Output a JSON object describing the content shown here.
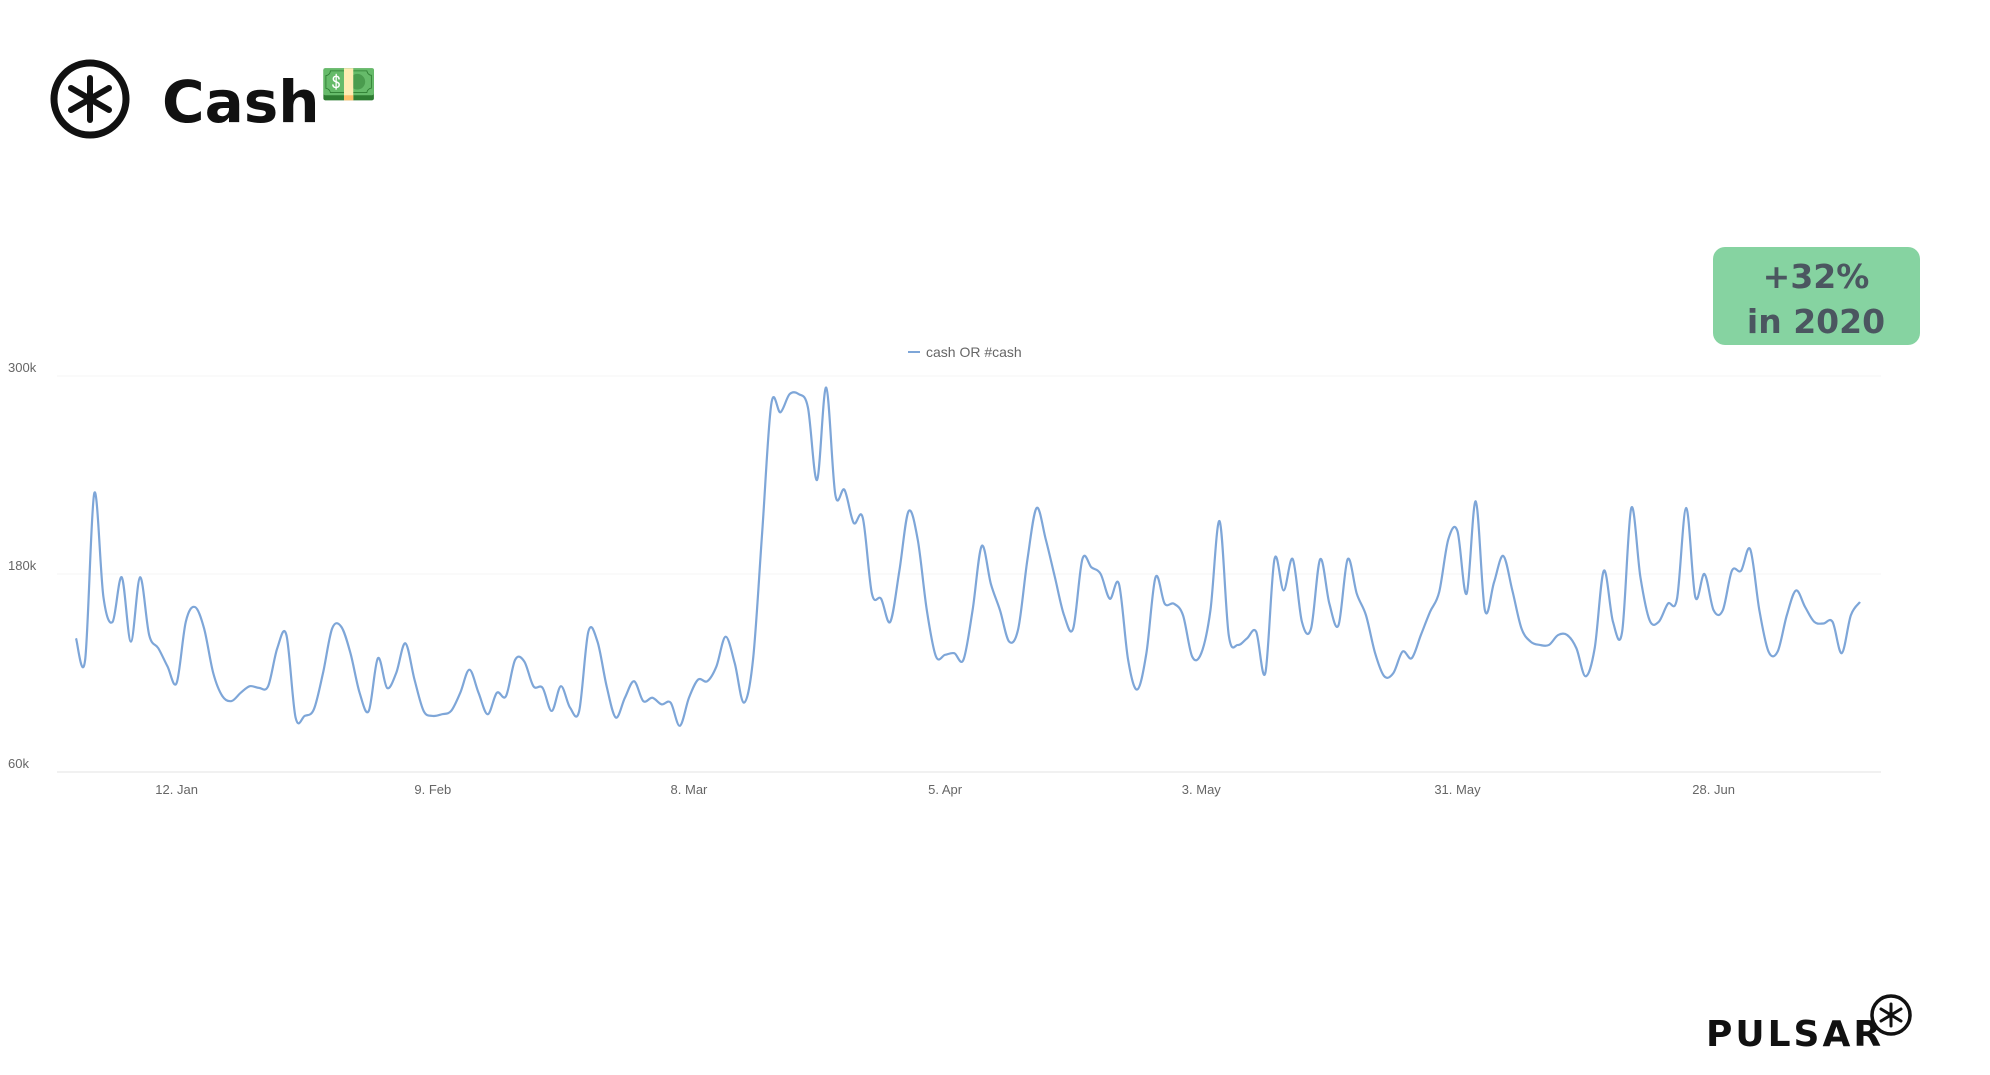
{
  "header": {
    "title": "Cash",
    "icon": "💵"
  },
  "badge": {
    "lines": [
      "+32%",
      "in 2020"
    ]
  },
  "brand": "PULSAR",
  "chart_data": {
    "type": "line",
    "categories": [
      null,
      null,
      null,
      null,
      null,
      null,
      null,
      null,
      null,
      null,
      null,
      "12. Jan",
      null,
      null,
      null,
      null,
      null,
      null,
      null,
      null,
      null,
      null,
      null,
      null,
      null,
      null,
      null,
      null,
      null,
      null,
      null,
      null,
      null,
      null,
      null,
      null,
      null,
      null,
      null,
      "9. Feb",
      null,
      null,
      null,
      null,
      null,
      null,
      null,
      null,
      null,
      null,
      null,
      null,
      null,
      null,
      null,
      null,
      null,
      null,
      null,
      null,
      null,
      null,
      null,
      null,
      null,
      null,
      null,
      "8. Mar",
      null,
      null,
      null,
      null,
      null,
      null,
      null,
      null,
      null,
      null,
      null,
      null,
      null,
      null,
      null,
      null,
      null,
      null,
      null,
      null,
      null,
      null,
      null,
      null,
      null,
      null,
      null,
      "5. Apr",
      null,
      null,
      null,
      null,
      null,
      null,
      null,
      null,
      null,
      null,
      null,
      null,
      null,
      null,
      null,
      null,
      null,
      null,
      null,
      null,
      null,
      null,
      null,
      null,
      null,
      null,
      null,
      "3. May",
      null,
      null,
      null,
      null,
      null,
      null,
      null,
      null,
      null,
      null,
      null,
      null,
      null,
      null,
      null,
      null,
      null,
      null,
      null,
      null,
      null,
      null,
      null,
      null,
      null,
      null,
      null,
      "31. May",
      null,
      null,
      null,
      null,
      null,
      null,
      null,
      null,
      null,
      null,
      null,
      null,
      null,
      null,
      null,
      null,
      null,
      null,
      null,
      null,
      null,
      null,
      null,
      null,
      null,
      null,
      null,
      "28. Jun",
      null,
      null,
      null,
      null,
      null,
      null,
      null,
      null,
      null,
      null,
      null,
      null,
      null,
      null,
      null,
      null
    ],
    "series": [
      {
        "name": "cash OR #cash",
        "color": "#7ea6d8",
        "values": [
          141,
          128,
          229,
          166,
          151,
          178,
          139,
          178,
          143,
          135,
          124,
          114,
          151,
          160,
          147,
          120,
          106,
          103,
          108,
          112,
          111,
          112,
          135,
          143,
          93,
          94,
          98,
          120,
          147,
          148,
          132,
          108,
          97,
          129,
          111,
          120,
          138,
          116,
          97,
          94,
          95,
          97,
          108,
          122,
          108,
          95,
          108,
          106,
          128,
          127,
          112,
          111,
          97,
          112,
          99,
          97,
          145,
          139,
          112,
          93,
          105,
          115,
          103,
          105,
          101,
          102,
          88,
          105,
          116,
          115,
          124,
          142,
          126,
          102,
          128,
          205,
          283,
          278,
          289,
          289,
          281,
          237,
          293,
          228,
          231,
          211,
          214,
          168,
          165,
          151,
          182,
          218,
          201,
          158,
          130,
          131,
          132,
          128,
          158,
          197,
          174,
          158,
          139,
          147,
          189,
          220,
          201,
          178,
          155,
          147,
          189,
          184,
          180,
          165,
          174,
          128,
          110,
          132,
          178,
          162,
          162,
          155,
          130,
          132,
          158,
          212,
          143,
          137,
          141,
          145,
          120,
          189,
          170,
          189,
          151,
          147,
          189,
          162,
          149,
          189,
          168,
          155,
          132,
          118,
          120,
          133,
          129,
          143,
          157,
          169,
          201,
          206,
          168,
          224,
          158,
          175,
          191,
          170,
          147,
          139,
          137,
          137,
          143,
          143,
          135,
          118,
          135,
          182,
          151,
          145,
          220,
          178,
          152,
          151,
          162,
          165,
          220,
          166,
          180,
          158,
          158,
          182,
          182,
          195,
          158,
          133,
          133,
          155,
          170,
          160,
          151,
          150,
          151,
          132,
          155,
          163
        ]
      }
    ],
    "ylim": [
      60,
      300
    ],
    "yticks": [
      {
        "value": 60,
        "label": "60k"
      },
      {
        "value": 180,
        "label": "180k"
      },
      {
        "value": 300,
        "label": "300k"
      }
    ],
    "grid": true,
    "legend": "top"
  }
}
